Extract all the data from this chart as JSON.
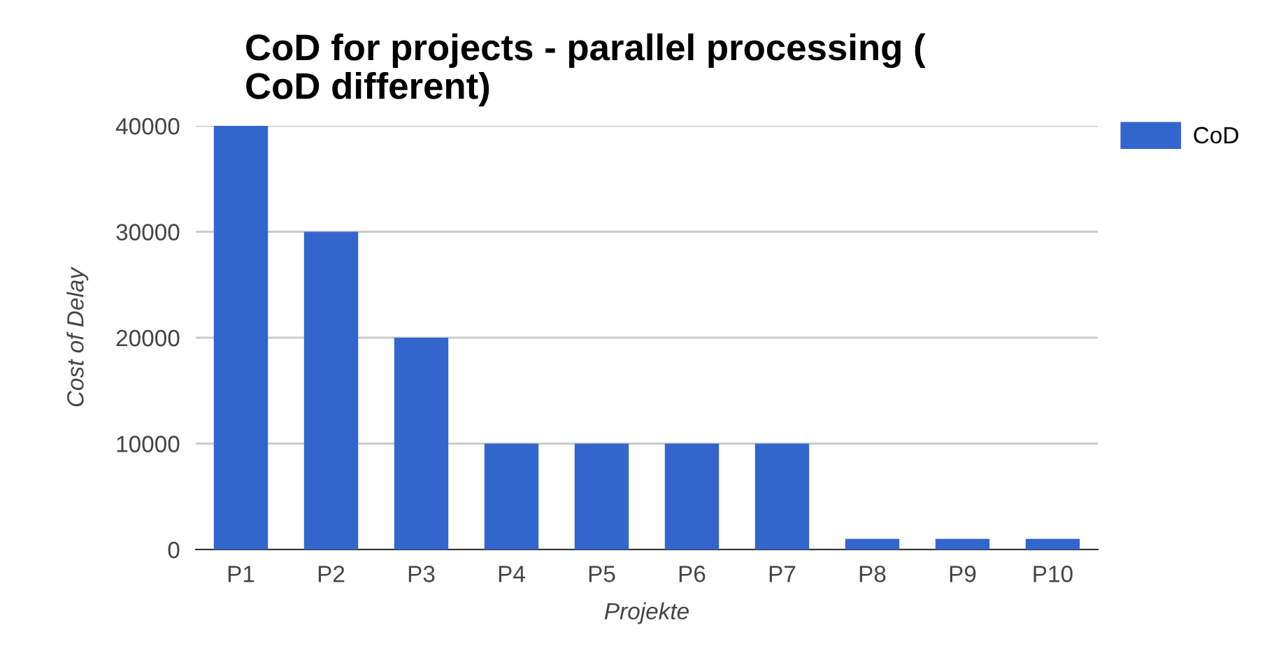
{
  "chart_data": {
    "type": "bar",
    "title": "CoD for projects - parallel processing (\nCoD different)",
    "xlabel": "Projekte",
    "ylabel": "Cost of Delay",
    "categories": [
      "P1",
      "P2",
      "P3",
      "P4",
      "P5",
      "P6",
      "P7",
      "P8",
      "P9",
      "P10"
    ],
    "series": [
      {
        "name": "CoD",
        "color": "#3366cc",
        "values": [
          40000,
          30000,
          20000,
          10000,
          10000,
          10000,
          10000,
          1000,
          1000,
          1000
        ]
      }
    ],
    "ylim": [
      0,
      40000
    ],
    "yticks": [
      0,
      10000,
      20000,
      30000,
      40000
    ],
    "grid": "y",
    "legend": "top right"
  }
}
